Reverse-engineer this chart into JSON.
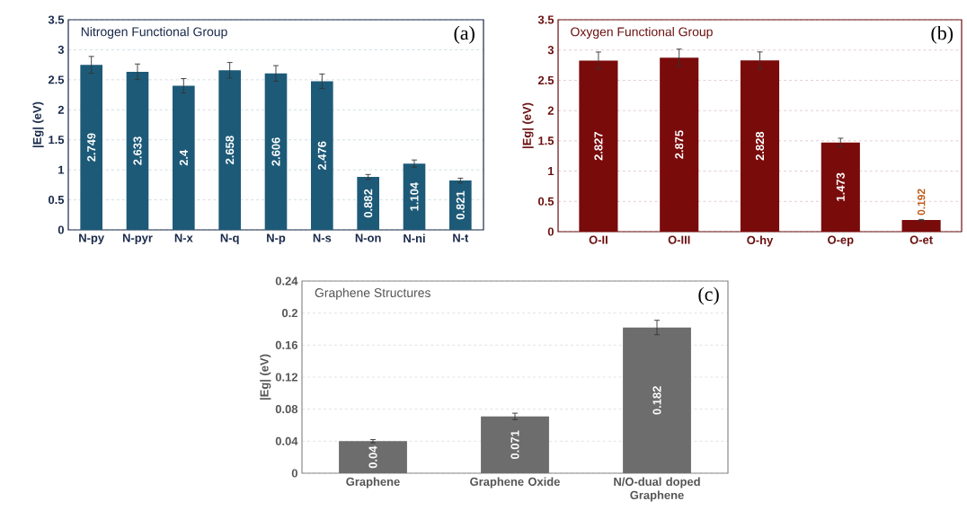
{
  "chart_data": [
    {
      "type": "bar",
      "title": "Nitrogen Functional Group",
      "ylabel": "|Eg| (eV)",
      "annotations": [
        "(a)"
      ],
      "categories": [
        "N-py",
        "N-pyr",
        "N-x",
        "N-q",
        "N-p",
        "N-s",
        "N-on",
        "N-ni",
        "N-t"
      ],
      "values": [
        2.749,
        2.633,
        2.4,
        2.658,
        2.606,
        2.476,
        0.882,
        1.104,
        0.821
      ],
      "errors": [
        0.14,
        0.13,
        0.12,
        0.13,
        0.13,
        0.12,
        0.04,
        0.06,
        0.04
      ],
      "color": "#1d5a78",
      "ylim": [
        0,
        3.5
      ],
      "yticks": [
        0,
        0.5,
        1,
        1.5,
        2,
        2.5,
        3,
        3.5
      ],
      "grid": "y",
      "data_labels": true
    },
    {
      "type": "bar",
      "title": "Oxygen Functional Group",
      "ylabel": "|Eg| (eV)",
      "annotations": [
        "(b)"
      ],
      "categories": [
        "O-II",
        "O-III",
        "O-hy",
        "O-ep",
        "O-et"
      ],
      "values": [
        2.827,
        2.875,
        2.828,
        1.473,
        0.192
      ],
      "errors": [
        0.14,
        0.14,
        0.14,
        0.07,
        0.01
      ],
      "color": "#7a0b0b",
      "ylim": [
        0,
        3.5
      ],
      "yticks": [
        0,
        0.5,
        1,
        1.5,
        2,
        2.5,
        3,
        3.5
      ],
      "grid": "y",
      "data_labels": true
    },
    {
      "type": "bar",
      "title": "Graphene Structures",
      "ylabel": "|Eg| (eV)",
      "annotations": [
        "(c)"
      ],
      "categories": [
        "Graphene",
        "Graphene Oxide",
        "N/O-dual doped Graphene"
      ],
      "values": [
        0.04,
        0.071,
        0.182
      ],
      "errors": [
        0.002,
        0.004,
        0.009
      ],
      "color": "#6d6d6d",
      "ylim": [
        0,
        0.24
      ],
      "yticks": [
        0,
        0.04,
        0.08,
        0.12,
        0.16,
        0.2,
        0.24
      ],
      "grid": "y",
      "data_labels": true
    }
  ]
}
